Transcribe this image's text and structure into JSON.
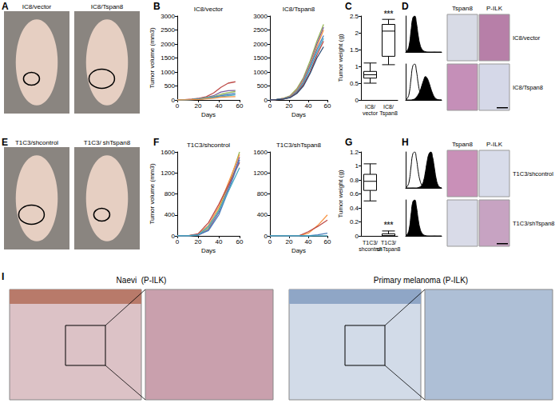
{
  "chart_data": [
    {
      "type": "line",
      "title": "IC8/vector",
      "x_label": "Days",
      "y_label": "Tumor volume (mm3)",
      "x": [
        0,
        7,
        14,
        21,
        28,
        35,
        42,
        49,
        56
      ],
      "xlim": [
        0,
        60
      ],
      "xticks": [
        0,
        20,
        40,
        60
      ],
      "ylim": [
        0,
        3000
      ],
      "yticks": [
        0,
        500,
        1000,
        1500,
        2000,
        2500,
        3000
      ],
      "grid": false,
      "series": [
        {
          "color": "#be4b48",
          "values": [
            0,
            10,
            30,
            60,
            120,
            250,
            450,
            600,
            650
          ]
        },
        {
          "color": "#7d60a0",
          "values": [
            0,
            5,
            20,
            50,
            90,
            150,
            280,
            330,
            340
          ]
        },
        {
          "color": "#98b954",
          "values": [
            0,
            5,
            15,
            40,
            80,
            120,
            200,
            260,
            300
          ]
        },
        {
          "color": "#4a7ebb",
          "values": [
            0,
            5,
            10,
            30,
            60,
            100,
            150,
            200,
            230
          ]
        },
        {
          "color": "#46aac5",
          "values": [
            0,
            5,
            10,
            25,
            50,
            80,
            120,
            150,
            180
          ]
        },
        {
          "color": "#f79646",
          "values": [
            0,
            5,
            10,
            20,
            40,
            60,
            100,
            110,
            120
          ]
        }
      ]
    },
    {
      "type": "line",
      "title": "IC8/Tspan8",
      "x_label": "Days",
      "x": [
        0,
        7,
        14,
        21,
        28,
        35,
        42,
        49,
        56
      ],
      "xlim": [
        0,
        60
      ],
      "xticks": [
        0,
        20,
        40,
        60
      ],
      "ylim": [
        0,
        3000
      ],
      "yticks": [
        0,
        500,
        1000,
        1500,
        2000,
        2500,
        3000
      ],
      "grid": false,
      "series": [
        {
          "color": "#98b954",
          "values": [
            0,
            20,
            60,
            150,
            400,
            800,
            1400,
            2100,
            2700
          ]
        },
        {
          "color": "#7d60a0",
          "values": [
            0,
            20,
            50,
            130,
            350,
            750,
            1300,
            2000,
            2600
          ]
        },
        {
          "color": "#f79646",
          "values": [
            0,
            15,
            50,
            120,
            330,
            700,
            1250,
            1900,
            2500
          ]
        },
        {
          "color": "#4a7ebb",
          "values": [
            0,
            15,
            40,
            100,
            300,
            650,
            1200,
            1800,
            2300
          ]
        },
        {
          "color": "#46aac5",
          "values": [
            0,
            15,
            40,
            100,
            280,
            600,
            1100,
            1700,
            2200
          ]
        },
        {
          "color": "#be4b48",
          "values": [
            0,
            10,
            30,
            90,
            250,
            550,
            1000,
            1600,
            2100
          ]
        },
        {
          "color": "#2c4d75",
          "values": [
            0,
            10,
            30,
            80,
            230,
            500,
            950,
            1500,
            1900
          ]
        }
      ]
    },
    {
      "type": "boxplot",
      "y_label": "Tumor weight (g)",
      "categories": [
        "IC8/\nvector",
        "IC8/\nTspan8"
      ],
      "values": [
        [
          0.5,
          0.65,
          0.75,
          0.85,
          1.1
        ],
        [
          1.05,
          1.3,
          2.05,
          2.25,
          2.4
        ]
      ],
      "ylim": [
        0,
        2.5
      ],
      "yticks": [
        0,
        0.5,
        1,
        1.5,
        2,
        2.5
      ],
      "grid": false,
      "annotations": [
        {
          "category": "IC8/\nTspan8",
          "text": "***"
        }
      ]
    },
    {
      "type": "line",
      "tick_labels": false,
      "x": [
        0,
        1,
        2,
        3,
        4,
        5,
        6,
        7,
        8,
        9,
        10,
        11,
        12,
        13,
        14,
        15,
        16,
        17,
        18,
        19,
        20
      ],
      "xlim": [
        0,
        20
      ],
      "ylim": [
        0,
        100
      ],
      "series": [
        {
          "type": "area",
          "color": "#000000",
          "values": [
            0,
            5,
            20,
            60,
            95,
            100,
            80,
            45,
            20,
            8,
            3,
            1,
            0,
            0,
            0,
            0,
            0,
            0,
            0,
            0,
            0
          ]
        }
      ]
    },
    {
      "type": "line",
      "tick_labels": false,
      "x": [
        0,
        1,
        2,
        3,
        4,
        5,
        6,
        7,
        8,
        9,
        10,
        11,
        12,
        13,
        14,
        15,
        16,
        17,
        18,
        19,
        20
      ],
      "xlim": [
        0,
        20
      ],
      "ylim": [
        0,
        100
      ],
      "series": [
        {
          "type": "area",
          "color": "#000000",
          "values": [
            0,
            0,
            0,
            0,
            1,
            3,
            8,
            15,
            25,
            40,
            55,
            65,
            60,
            48,
            32,
            18,
            8,
            3,
            1,
            0,
            0
          ]
        },
        {
          "type": "line",
          "color": "#000000",
          "values": [
            0,
            5,
            20,
            60,
            95,
            100,
            80,
            45,
            20,
            8,
            3,
            1,
            0,
            0,
            0,
            0,
            0,
            0,
            0,
            0,
            0
          ]
        }
      ]
    },
    {
      "type": "line",
      "title": "T1C3/shcontrol",
      "x_label": "Days",
      "y_label": "Tumor volume (mm3)",
      "x": [
        0,
        10,
        20,
        30,
        40,
        50,
        60
      ],
      "xlim": [
        0,
        60
      ],
      "xticks": [
        0,
        20,
        40,
        60
      ],
      "ylim": [
        0,
        1600
      ],
      "yticks": [
        0,
        400,
        800,
        1200,
        1600
      ],
      "grid": false,
      "series": [
        {
          "color": "#98b954",
          "values": [
            0,
            0,
            20,
            150,
            500,
            1000,
            1600
          ]
        },
        {
          "color": "#f79646",
          "values": [
            0,
            0,
            30,
            200,
            550,
            1050,
            1550
          ]
        },
        {
          "color": "#7d60a0",
          "values": [
            0,
            0,
            10,
            120,
            450,
            950,
            1500
          ]
        },
        {
          "color": "#be4b48",
          "values": [
            0,
            0,
            40,
            250,
            600,
            1000,
            1400
          ]
        },
        {
          "color": "#4a7ebb",
          "values": [
            0,
            0,
            20,
            100,
            400,
            900,
            1450
          ]
        },
        {
          "color": "#46aac5",
          "values": [
            0,
            0,
            15,
            180,
            480,
            880,
            1300
          ]
        }
      ]
    },
    {
      "type": "line",
      "title": "T1C3/shTspan8",
      "x_label": "Days",
      "x": [
        0,
        10,
        20,
        30,
        40,
        50,
        60
      ],
      "xlim": [
        0,
        60
      ],
      "xticks": [
        0,
        20,
        40,
        60
      ],
      "ylim": [
        0,
        1600
      ],
      "yticks": [
        0,
        400,
        800,
        1200,
        1600
      ],
      "grid": false,
      "series": [
        {
          "color": "#f79646",
          "values": [
            0,
            0,
            0,
            0,
            50,
            200,
            400
          ]
        },
        {
          "color": "#be4b48",
          "values": [
            0,
            0,
            0,
            0,
            80,
            180,
            300
          ]
        },
        {
          "color": "#4a7ebb",
          "values": [
            0,
            0,
            0,
            0,
            0,
            20,
            50
          ]
        },
        {
          "color": "#46aac5",
          "values": [
            0,
            0,
            0,
            0,
            0,
            0,
            0
          ]
        }
      ]
    },
    {
      "type": "boxplot",
      "y_label": "Tumor weight (g)",
      "categories": [
        "T1C3/\nshcontrol",
        "T1C3/\nshTspan8"
      ],
      "values": [
        [
          0.5,
          0.65,
          0.78,
          0.88,
          1.03
        ],
        [
          0,
          0,
          0,
          0.03,
          0.07
        ]
      ],
      "ylim": [
        0,
        1.2
      ],
      "yticks": [
        0,
        0.2,
        0.4,
        0.6,
        0.8,
        1,
        1.2
      ],
      "grid": false,
      "annotations": [
        {
          "category": "T1C3/\nshTspan8",
          "text": "***"
        }
      ]
    },
    {
      "type": "line",
      "tick_labels": false,
      "x": [
        0,
        1,
        2,
        3,
        4,
        5,
        6,
        7,
        8,
        9,
        10,
        11,
        12,
        13,
        14,
        15,
        16,
        17,
        18,
        19,
        20
      ],
      "xlim": [
        0,
        20
      ],
      "ylim": [
        0,
        100
      ],
      "series": [
        {
          "type": "area",
          "color": "#000000",
          "values": [
            0,
            0,
            0,
            0,
            0,
            0,
            0,
            1,
            3,
            8,
            20,
            45,
            75,
            95,
            100,
            85,
            55,
            25,
            8,
            2,
            0
          ]
        },
        {
          "type": "line",
          "color": "#000000",
          "values": [
            0,
            5,
            20,
            60,
            95,
            100,
            80,
            45,
            20,
            8,
            3,
            1,
            0,
            0,
            0,
            0,
            0,
            0,
            0,
            0,
            0
          ]
        }
      ]
    },
    {
      "type": "line",
      "tick_labels": false,
      "x": [
        0,
        1,
        2,
        3,
        4,
        5,
        6,
        7,
        8,
        9,
        10,
        11,
        12,
        13,
        14,
        15,
        16,
        17,
        18,
        19,
        20
      ],
      "xlim": [
        0,
        20
      ],
      "ylim": [
        0,
        100
      ],
      "series": [
        {
          "type": "area",
          "color": "#000000",
          "values": [
            0,
            5,
            20,
            60,
            95,
            100,
            80,
            45,
            20,
            8,
            3,
            1,
            0,
            0,
            0,
            0,
            0,
            0,
            0,
            0,
            0
          ]
        }
      ]
    }
  ],
  "figure": {
    "panel_letters": [
      "A",
      "B",
      "C",
      "D",
      "E",
      "F",
      "G",
      "H",
      "I"
    ],
    "photos_A": [
      "IC8/vector",
      "IC8/Tspan8"
    ],
    "photos_E": [
      "T1C3/shcontrol",
      "T1C3/ shTspan8"
    ],
    "ihc_D": {
      "columns": [
        "Tspan8",
        "P-ILK"
      ],
      "rows": [
        "IC8/vector",
        "IC8/Tspan8"
      ]
    },
    "ihc_H": {
      "columns": [
        "Tspan8",
        "P-ILK"
      ],
      "rows": [
        "T1C3/shcontrol",
        "T1C3/shTspan8"
      ]
    },
    "ihc_I": [
      "Naevi  (P-ILK)",
      "Primary melanoma (P-ILK)"
    ]
  }
}
